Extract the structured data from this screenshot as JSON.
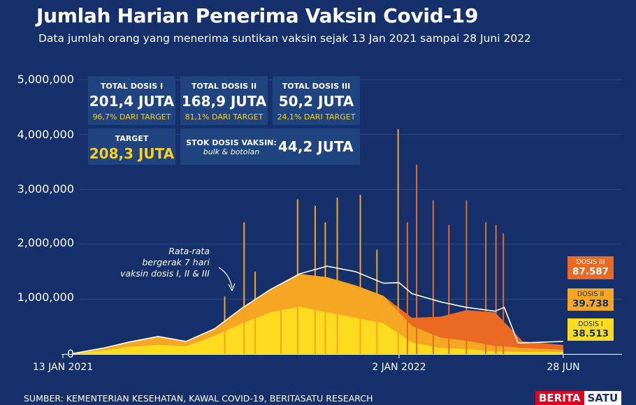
{
  "header": {
    "title": "Jumlah Harian Penerima Vaksin Covid-19",
    "subtitle": "Data jumlah orang yang menerima suntikan vaksin sejak 13 Jan 2021 sampai 28 Juni 2022"
  },
  "stats": {
    "dose1": {
      "label": "TOTAL DOSIS I",
      "value": "201,4 JUTA",
      "pct": "96,7% DARI TARGET"
    },
    "dose2": {
      "label": "TOTAL DOSIS II",
      "value": "168,9 JUTA",
      "pct": "81,1% DARI TARGET"
    },
    "dose3": {
      "label": "TOTAL DOSIS III",
      "value": "50,2 JUTA",
      "pct": "24,1% DARI TARGET"
    },
    "target": {
      "label": "TARGET",
      "value": "208,3 JUTA"
    },
    "stock": {
      "label": "STOK DOSIS VAKSIN:",
      "sub": "bulk & botolan",
      "value": "44,2 JUTA"
    }
  },
  "annotation": {
    "line1": "Rata-rata",
    "line2": "bergerak 7 hari",
    "line3": "vaksin dosis I, II & III"
  },
  "end_labels": {
    "dose3": {
      "label": "DOSIS III",
      "value": "87.587"
    },
    "dose2": {
      "label": "DOSIS II",
      "value": "39.738"
    },
    "dose1": {
      "label": "DOSIS I",
      "value": "38.513"
    }
  },
  "source": "SUMBER: KEMENTERIAN KESEHATAN, KAWAL COVID-19, BERITASATU RESEARCH",
  "brand": {
    "part1": "BERITA",
    "part2": "SATU"
  },
  "colors": {
    "background": "#15306b",
    "dose1": "#fddb1f",
    "dose2": "#f5a623",
    "dose3": "#ea6a23",
    "average": "#ffffff",
    "highlight": "#f6d027"
  },
  "chart_data": {
    "type": "area",
    "title": "Jumlah Harian Penerima Vaksin Covid-19",
    "x_range": [
      "2021-01-13",
      "2022-06-28"
    ],
    "x_ticks": [
      "13 JAN 2021",
      "2 JAN 2022",
      "28 JUN"
    ],
    "y_ticks": [
      "0",
      "1,000,000",
      "2,000,000",
      "3,000,000",
      "4,000,000",
      "5,000,000"
    ],
    "ylim": [
      0,
      5000000
    ],
    "grid": true,
    "series": [
      {
        "name": "DOSIS I",
        "color": "#fddb1f",
        "x": [
          "2021-01-13",
          "2021-02-15",
          "2021-03-15",
          "2021-04-15",
          "2021-05-15",
          "2021-06-15",
          "2021-07-15",
          "2021-08-15",
          "2021-09-15",
          "2021-10-15",
          "2021-11-15",
          "2021-12-15",
          "2022-01-15",
          "2022-02-15",
          "2022-03-15",
          "2022-04-15",
          "2022-05-15",
          "2022-06-28"
        ],
        "values": [
          10000,
          70000,
          130000,
          170000,
          140000,
          330000,
          560000,
          760000,
          860000,
          760000,
          660000,
          560000,
          210000,
          110000,
          90000,
          50000,
          40000,
          38513
        ]
      },
      {
        "name": "DOSIS II",
        "color": "#f5a623",
        "x": [
          "2021-01-13",
          "2021-02-15",
          "2021-03-15",
          "2021-04-15",
          "2021-05-15",
          "2021-06-15",
          "2021-07-15",
          "2021-08-15",
          "2021-09-15",
          "2021-10-15",
          "2021-11-15",
          "2021-12-15",
          "2022-01-15",
          "2022-02-15",
          "2022-03-15",
          "2022-04-15",
          "2022-05-15",
          "2022-06-28"
        ],
        "values": [
          0,
          40000,
          90000,
          150000,
          90000,
          130000,
          280000,
          420000,
          600000,
          640000,
          590000,
          500000,
          300000,
          190000,
          150000,
          100000,
          70000,
          39738
        ]
      },
      {
        "name": "DOSIS III",
        "color": "#ea6a23",
        "x": [
          "2021-01-13",
          "2021-02-15",
          "2021-03-15",
          "2021-04-15",
          "2021-05-15",
          "2021-06-15",
          "2021-07-15",
          "2021-08-15",
          "2021-09-15",
          "2021-10-15",
          "2021-11-15",
          "2021-12-15",
          "2022-01-15",
          "2022-02-15",
          "2022-03-15",
          "2022-04-15",
          "2022-05-15",
          "2022-06-28"
        ],
        "values": [
          0,
          0,
          0,
          0,
          0,
          0,
          0,
          0,
          0,
          0,
          0,
          0,
          150000,
          380000,
          560000,
          610000,
          120000,
          87587
        ]
      }
    ],
    "spikes": [
      {
        "x": "2021-06-26",
        "value": 1050000
      },
      {
        "x": "2021-07-17",
        "value": 2400000
      },
      {
        "x": "2021-07-29",
        "value": 1500000
      },
      {
        "x": "2021-08-26",
        "value": 1250000
      },
      {
        "x": "2021-09-13",
        "value": 2820000
      },
      {
        "x": "2021-10-02",
        "value": 2700000
      },
      {
        "x": "2021-10-13",
        "value": 2400000
      },
      {
        "x": "2021-10-26",
        "value": 2850000
      },
      {
        "x": "2021-11-20",
        "value": 2900000
      },
      {
        "x": "2021-12-08",
        "value": 1900000
      },
      {
        "x": "2021-12-31",
        "value": 4100000
      },
      {
        "x": "2022-01-10",
        "value": 2400000
      },
      {
        "x": "2022-01-20",
        "value": 3450000
      },
      {
        "x": "2022-02-07",
        "value": 2800000
      },
      {
        "x": "2022-02-24",
        "value": 2350000
      },
      {
        "x": "2022-03-15",
        "value": 2800000
      },
      {
        "x": "2022-04-05",
        "value": 2400000
      },
      {
        "x": "2022-04-16",
        "value": 2350000
      },
      {
        "x": "2022-04-24",
        "value": 2200000
      }
    ],
    "moving_average": {
      "name": "Rata-rata bergerak 7 hari vaksin dosis I, II & III",
      "x": [
        "2021-01-13",
        "2021-02-15",
        "2021-03-15",
        "2021-04-15",
        "2021-05-15",
        "2021-06-15",
        "2021-07-15",
        "2021-08-15",
        "2021-09-15",
        "2021-10-15",
        "2021-11-15",
        "2021-12-15",
        "2022-01-01",
        "2022-01-15",
        "2022-02-15",
        "2022-03-15",
        "2022-04-15",
        "2022-04-25",
        "2022-05-10",
        "2022-06-28"
      ],
      "values": [
        10000,
        110000,
        220000,
        320000,
        230000,
        460000,
        840000,
        1180000,
        1460000,
        1600000,
        1500000,
        1290000,
        1300000,
        1100000,
        950000,
        850000,
        780000,
        850000,
        200000,
        230000
      ]
    }
  }
}
